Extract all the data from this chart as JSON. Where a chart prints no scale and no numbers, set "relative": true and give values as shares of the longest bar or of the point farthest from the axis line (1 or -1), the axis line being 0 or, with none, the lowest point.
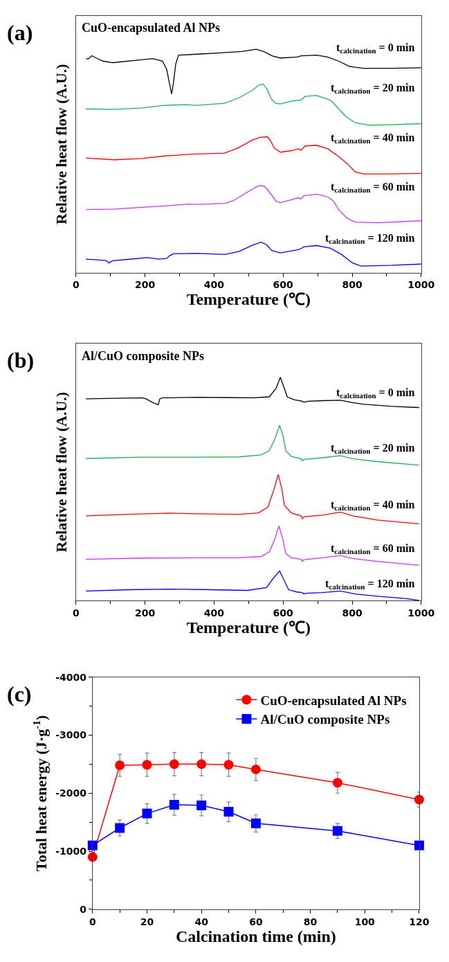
{
  "chart_data": [
    {
      "type": "line",
      "relative": true,
      "title": "CuO-encapsulated Al NPs",
      "xlabel": "Temperature (℃)",
      "ylabel": "Relative heat flow (A.U.)",
      "annotations": [
        "(a)"
      ],
      "xlim": [
        0,
        1000
      ],
      "xticks": [
        0,
        {
          "value": 100,
          "label": null
        },
        200,
        {
          "value": 300,
          "label": null
        },
        400,
        {
          "value": 500,
          "label": null
        },
        600,
        {
          "value": 700,
          "label": null
        },
        800,
        {
          "value": 900,
          "label": null
        },
        1000
      ],
      "tick_labels": "x",
      "line_style": "solid",
      "marker": "none",
      "series": [
        {
          "name": "t$_{calcination}$ = 0 min",
          "color": "#000000",
          "x": [
            29,
            34.5,
            46.5,
            58.6,
            78.7,
            106.7,
            183,
            223,
            251,
            263,
            271,
            277,
            282,
            289,
            297,
            352,
            416,
            480,
            522,
            544,
            568,
            592,
            640,
            652,
            697,
            729,
            761,
            793,
            833,
            913,
            1000
          ],
          "values": [
            0.958,
            0.956,
            0.971,
            0.961,
            0.947,
            0.94,
            0.952,
            0.958,
            0.947,
            0.909,
            0.846,
            0.8,
            0.846,
            0.934,
            0.974,
            0.978,
            0.984,
            0.99,
            1.0,
            0.99,
            0.971,
            0.961,
            0.965,
            0.971,
            0.974,
            0.965,
            0.947,
            0.923,
            0.915,
            0.915,
            0.917
          ]
        },
        {
          "name": "t$_{calcination}$ = 20 min",
          "color": "#22b14c",
          "x": [
            29,
            111,
            191,
            255,
            318,
            350,
            430,
            470,
            510,
            530,
            542,
            554,
            566,
            578,
            592,
            624,
            644,
            652,
            664,
            697,
            729,
            741,
            761,
            785,
            809,
            849,
            913,
            1000
          ],
          "values": [
            0.733,
            0.731,
            0.737,
            0.749,
            0.752,
            0.749,
            0.758,
            0.781,
            0.815,
            0.84,
            0.844,
            0.82,
            0.777,
            0.758,
            0.755,
            0.768,
            0.771,
            0.773,
            0.789,
            0.793,
            0.777,
            0.768,
            0.733,
            0.695,
            0.671,
            0.66,
            0.662,
            0.667
          ]
        },
        {
          "name": "t$_{calcination}$ = 40 min",
          "color": "#ff0000",
          "x": [
            29,
            111,
            191,
            255,
            335,
            430,
            470,
            510,
            534,
            554,
            562,
            574,
            592,
            624,
            644,
            652,
            664,
            697,
            729,
            761,
            785,
            809,
            833,
            913,
            1000
          ],
          "values": [
            0.513,
            0.505,
            0.511,
            0.522,
            0.53,
            0.535,
            0.558,
            0.593,
            0.606,
            0.608,
            0.595,
            0.558,
            0.539,
            0.546,
            0.554,
            0.548,
            0.567,
            0.57,
            0.555,
            0.52,
            0.489,
            0.451,
            0.442,
            0.442,
            0.444
          ]
        },
        {
          "name": "t$_{calcination}$ = 60 min",
          "color": "#cc33ff",
          "x": [
            29,
            111,
            191,
            271,
            327,
            352,
            432,
            456,
            496,
            528,
            544,
            556,
            580,
            592,
            624,
            644,
            652,
            660,
            697,
            729,
            745,
            761,
            785,
            809,
            873,
            1000
          ],
          "values": [
            0.282,
            0.284,
            0.292,
            0.3,
            0.307,
            0.305,
            0.31,
            0.322,
            0.36,
            0.388,
            0.388,
            0.37,
            0.319,
            0.313,
            0.326,
            0.335,
            0.33,
            0.344,
            0.351,
            0.339,
            0.322,
            0.282,
            0.244,
            0.226,
            0.223,
            0.232
          ]
        },
        {
          "name": "t$_{calcination}$ = 120 min",
          "color": "#0000ff",
          "x": [
            29,
            87,
            95,
            107,
            151,
            207,
            239,
            263,
            271,
            283,
            352,
            432,
            472,
            512,
            536,
            552,
            568,
            592,
            640,
            652,
            660,
            697,
            737,
            769,
            801,
            825,
            913,
            1000
          ],
          "values": [
            0.06,
            0.054,
            0.043,
            0.053,
            0.059,
            0.067,
            0.06,
            0.063,
            0.075,
            0.084,
            0.086,
            0.081,
            0.094,
            0.123,
            0.136,
            0.125,
            0.098,
            0.088,
            0.101,
            0.107,
            0.115,
            0.121,
            0.109,
            0.081,
            0.043,
            0.029,
            0.032,
            0.038
          ]
        }
      ]
    },
    {
      "type": "line",
      "relative": true,
      "title": "Al/CuO composite NPs",
      "xlabel": "Temperature (℃)",
      "ylabel": "Relative heat flow (A.U.)",
      "annotations": [
        "(b)"
      ],
      "xlim": [
        0,
        1000
      ],
      "xticks": [
        0,
        {
          "value": 100,
          "label": null
        },
        200,
        {
          "value": 300,
          "label": null
        },
        400,
        {
          "value": 500,
          "label": null
        },
        600,
        {
          "value": 700,
          "label": null
        },
        800,
        {
          "value": 900,
          "label": null
        },
        1000
      ],
      "tick_labels": "x",
      "line_style": "solid",
      "marker": "none",
      "series": [
        {
          "name": "t$_{calcination}$ = 0 min",
          "color": "#000000",
          "x": [
            29,
            191,
            203,
            223,
            238,
            243,
            251,
            271,
            352,
            432,
            512,
            560,
            580,
            592,
            602,
            612,
            632,
            656,
            660,
            672,
            713,
            766,
            802,
            833,
            913,
            994
          ],
          "values": [
            0.903,
            0.908,
            0.903,
            0.886,
            0.877,
            0.903,
            0.908,
            0.908,
            0.91,
            0.909,
            0.908,
            0.912,
            0.951,
            1.0,
            0.957,
            0.912,
            0.899,
            0.892,
            0.888,
            0.892,
            0.895,
            0.897,
            0.886,
            0.879,
            0.87,
            0.864
          ]
        },
        {
          "name": "t$_{calcination}$ = 20 min",
          "color": "#22b14c",
          "x": [
            29,
            191,
            352,
            472,
            536,
            560,
            576,
            590,
            600,
            608,
            624,
            652,
            656,
            660,
            713,
            766,
            802,
            873,
            994
          ],
          "values": [
            0.636,
            0.642,
            0.642,
            0.643,
            0.652,
            0.671,
            0.723,
            0.784,
            0.736,
            0.671,
            0.645,
            0.635,
            0.626,
            0.632,
            0.639,
            0.649,
            0.635,
            0.622,
            0.606
          ]
        },
        {
          "name": "t$_{calcination}$ = 40 min",
          "color": "#ff0000",
          "x": [
            29,
            151,
            271,
            352,
            472,
            528,
            556,
            572,
            586,
            596,
            604,
            624,
            652,
            656,
            660,
            713,
            766,
            802,
            873,
            994
          ],
          "values": [
            0.379,
            0.386,
            0.391,
            0.388,
            0.386,
            0.392,
            0.418,
            0.49,
            0.564,
            0.503,
            0.425,
            0.392,
            0.379,
            0.366,
            0.375,
            0.382,
            0.396,
            0.379,
            0.36,
            0.343
          ]
        },
        {
          "name": "t$_{calcination}$ = 60 min",
          "color": "#cc33ff",
          "x": [
            29,
            191,
            352,
            472,
            536,
            560,
            576,
            588,
            599,
            608,
            624,
            652,
            656,
            660,
            713,
            766,
            802,
            873,
            994
          ],
          "values": [
            0.184,
            0.19,
            0.191,
            0.191,
            0.197,
            0.217,
            0.275,
            0.334,
            0.275,
            0.21,
            0.191,
            0.184,
            0.175,
            0.183,
            0.191,
            0.201,
            0.188,
            0.175,
            0.158
          ]
        },
        {
          "name": "t$_{calcination}$ = 120 min",
          "color": "#0000ff",
          "x": [
            29,
            151,
            271,
            392,
            496,
            552,
            572,
            590,
            604,
            616,
            640,
            656,
            660,
            664,
            713,
            766,
            809,
            873,
            953,
            994
          ],
          "values": [
            0.042,
            0.048,
            0.051,
            0.048,
            0.045,
            0.058,
            0.1,
            0.132,
            0.087,
            0.048,
            0.038,
            0.035,
            0.029,
            0.032,
            0.035,
            0.042,
            0.029,
            0.019,
            0.009,
            0.0
          ]
        }
      ]
    },
    {
      "type": "line",
      "xlabel": "Calcination time (min)",
      "ylabel": "Total heat energy (J·g$^{-1}$)",
      "annotations": [
        "(c)"
      ],
      "x": [
        0,
        10,
        20,
        30,
        40,
        50,
        60,
        90,
        120
      ],
      "xlim": [
        0,
        120
      ],
      "xticks": [
        0,
        {
          "value": 10,
          "label": null
        },
        20,
        {
          "value": 30,
          "label": null
        },
        40,
        {
          "value": 50,
          "label": null
        },
        60,
        {
          "value": 70,
          "label": null
        },
        80,
        {
          "value": 90,
          "label": null
        },
        100,
        {
          "value": 110,
          "label": null
        },
        120
      ],
      "ylim": [
        0,
        -4000
      ],
      "yticks": [
        0,
        {
          "value": -500,
          "label": null
        },
        -1000,
        {
          "value": -1500,
          "label": null
        },
        -2000,
        {
          "value": -2500,
          "label": null
        },
        -3000,
        {
          "value": -3500,
          "label": null
        },
        -4000
      ],
      "legend": "top right",
      "line_style": "solid",
      "series": [
        {
          "name": "CuO-encapsulated Al NPs",
          "color": "#ff0000",
          "marker": "circle",
          "values": [
            -900,
            -2480,
            -2490,
            -2500,
            -2500,
            -2490,
            -2410,
            -2180,
            -1890
          ],
          "errors": [
            null,
            190,
            200,
            200,
            200,
            200,
            190,
            180,
            130
          ]
        },
        {
          "name": "Al/CuO composite NPs",
          "color": "#0000ff",
          "marker": "square",
          "values": [
            -1100,
            -1400,
            -1650,
            -1800,
            -1790,
            -1680,
            -1480,
            -1350,
            -1100
          ],
          "errors": [
            null,
            140,
            170,
            180,
            180,
            170,
            150,
            130,
            null
          ]
        }
      ]
    }
  ]
}
